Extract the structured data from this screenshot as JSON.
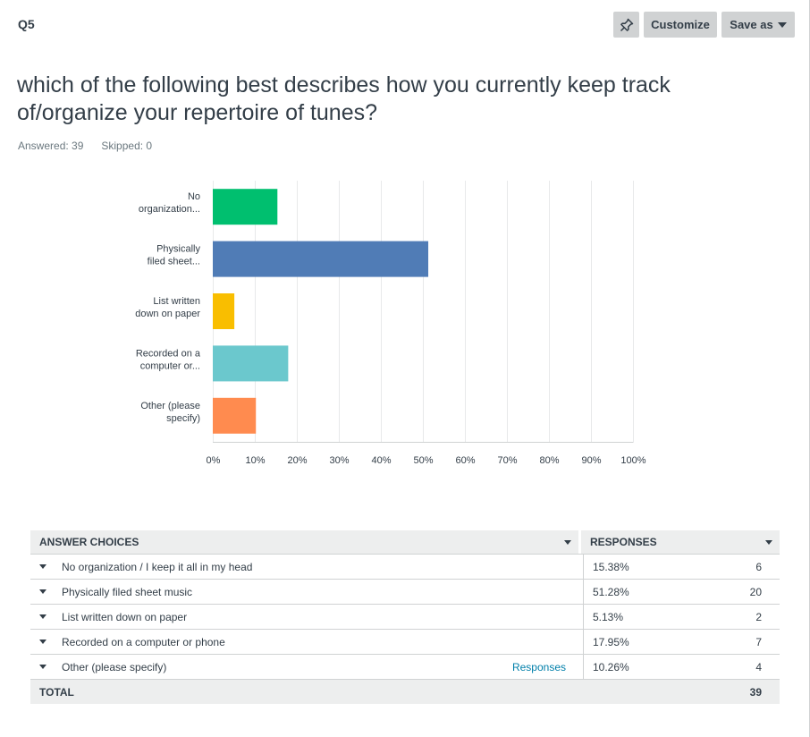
{
  "question": {
    "number": "Q5",
    "title": "which of the following best describes how you currently keep track of/organize your repertoire of tunes?",
    "answered_label": "Answered: 39",
    "skipped_label": "Skipped: 0"
  },
  "toolbar": {
    "pin_icon": "pin-icon",
    "customize_label": "Customize",
    "save_as_label": "Save as"
  },
  "chart_data": {
    "type": "bar",
    "orientation": "horizontal",
    "categories": [
      [
        "No",
        "organization..."
      ],
      [
        "Physically",
        "filed sheet..."
      ],
      [
        "List written",
        "down on paper"
      ],
      [
        "Recorded on a",
        "computer or..."
      ],
      [
        "Other (please",
        "specify)"
      ]
    ],
    "values": [
      15.38,
      51.28,
      5.13,
      17.95,
      10.26
    ],
    "colors": [
      "#00bf6f",
      "#507cb6",
      "#f9be00",
      "#6bc8cd",
      "#ff8b4f"
    ],
    "xlim": [
      0,
      100
    ],
    "xticks": [
      "0%",
      "10%",
      "20%",
      "30%",
      "40%",
      "50%",
      "60%",
      "70%",
      "80%",
      "90%",
      "100%"
    ],
    "grid": true
  },
  "table": {
    "header_choices": "ANSWER CHOICES",
    "header_responses": "RESPONSES",
    "rows": [
      {
        "label": "No organization / I keep it all in my head",
        "percent": "15.38%",
        "count": "6",
        "link": ""
      },
      {
        "label": "Physically filed sheet music",
        "percent": "51.28%",
        "count": "20",
        "link": ""
      },
      {
        "label": "List written down on paper",
        "percent": "5.13%",
        "count": "2",
        "link": ""
      },
      {
        "label": "Recorded on a computer or phone",
        "percent": "17.95%",
        "count": "7",
        "link": ""
      },
      {
        "label": "Other (please specify)",
        "percent": "10.26%",
        "count": "4",
        "link": "Responses"
      }
    ],
    "total_label": "TOTAL",
    "total_count": "39"
  }
}
